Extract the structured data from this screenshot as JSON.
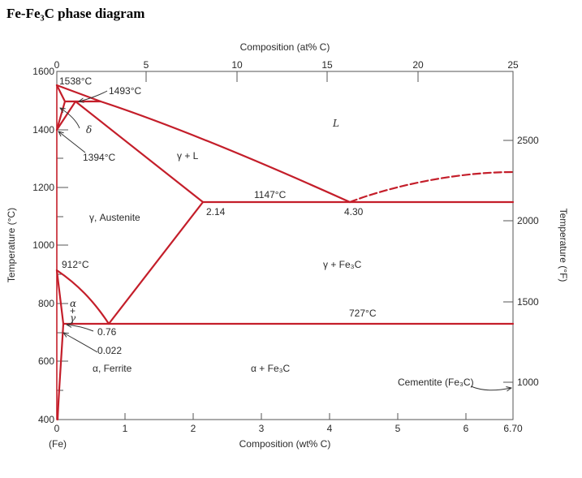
{
  "title": "Fe-Fe₃C phase diagram",
  "axes": {
    "bottom_title": "Composition (wt% C)",
    "top_title": "Composition (at% C)",
    "left_title": "Temperature (°C)",
    "right_title": "Temperature (°F)",
    "origin_note": "(Fe)",
    "bottom_ticks": [
      "0",
      "1",
      "2",
      "3",
      "4",
      "5",
      "6",
      "6.70"
    ],
    "top_ticks": [
      "0",
      "5",
      "10",
      "15",
      "20",
      "25"
    ],
    "left_ticks": [
      "400",
      "600",
      "800",
      "1000",
      "1200",
      "1400",
      "1600"
    ],
    "right_ticks": [
      "1000",
      "1500",
      "2000",
      "2500"
    ]
  },
  "annotations": {
    "t1538": "1538°C",
    "t1493": "1493°C",
    "t1394": "1394°C",
    "t1147": "1147°C",
    "t912": "912°C",
    "t727": "727°C",
    "c214": "2.14",
    "c430": "4.30",
    "c076": "0.76",
    "c0022": "0.022"
  },
  "phases": {
    "liquid": "L",
    "delta": "δ",
    "gamma_liquid": "γ + L",
    "austenite": "γ, Austenite",
    "gamma_cementite": "γ + Fe₃C",
    "alpha_cementite": "α + Fe₃C",
    "ferrite": "α, Ferrite",
    "alpha_sym": "α",
    "plus_sym": "+",
    "gamma_sym": "γ",
    "cementite": "Cementite (Fe₃C)"
  },
  "colors": {
    "phase_line": "#c41e2a",
    "axis": "#444444",
    "text": "#2a2a2a"
  }
}
